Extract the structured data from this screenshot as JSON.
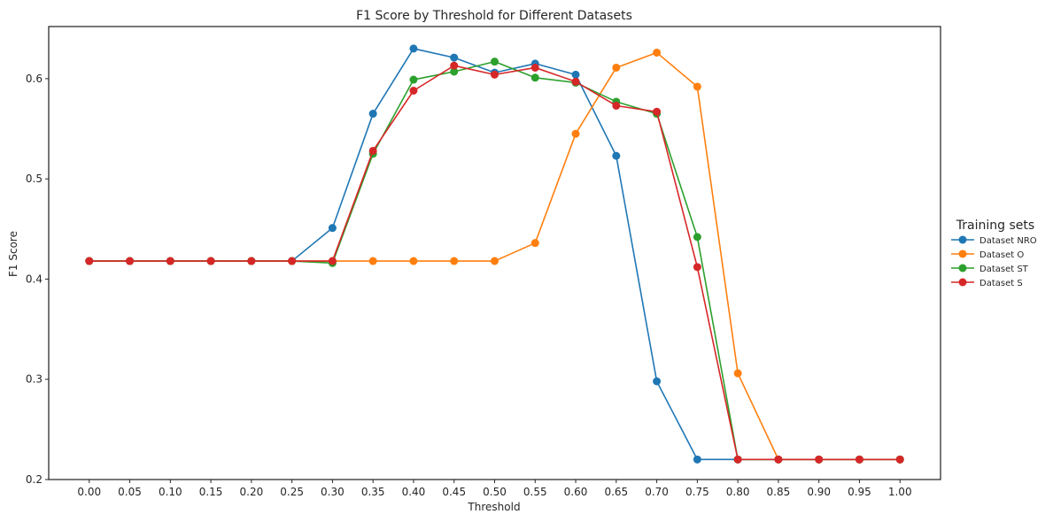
{
  "chart_data": {
    "type": "line",
    "title": "F1 Score by Threshold for Different Datasets",
    "xlabel": "Threshold",
    "ylabel": "F1 Score",
    "x": [
      0.0,
      0.05,
      0.1,
      0.15,
      0.2,
      0.25,
      0.3,
      0.35,
      0.4,
      0.45,
      0.5,
      0.55,
      0.6,
      0.65,
      0.7,
      0.75,
      0.8,
      0.85,
      0.9,
      0.95,
      1.0
    ],
    "x_tick_labels": [
      "0.00",
      "0.05",
      "0.10",
      "0.15",
      "0.20",
      "0.25",
      "0.30",
      "0.35",
      "0.40",
      "0.45",
      "0.50",
      "0.55",
      "0.60",
      "0.65",
      "0.70",
      "0.75",
      "0.80",
      "0.85",
      "0.90",
      "0.95",
      "1.00"
    ],
    "xlim": [
      -0.05,
      1.05
    ],
    "ylim": [
      0.2,
      0.652
    ],
    "y_ticks": [
      0.2,
      0.3,
      0.4,
      0.5,
      0.6
    ],
    "y_tick_labels": [
      "0.2",
      "0.3",
      "0.4",
      "0.5",
      "0.6"
    ],
    "grid": false,
    "legend": {
      "title": "Training sets",
      "placement": "outside-right"
    },
    "series": [
      {
        "name": "Dataset NRO",
        "color": "#1f77b4",
        "values": [
          0.418,
          0.418,
          0.418,
          0.418,
          0.418,
          0.418,
          0.451,
          0.565,
          0.63,
          0.621,
          0.606,
          0.615,
          0.604,
          0.523,
          0.298,
          0.22,
          0.22,
          0.22,
          0.22,
          0.22,
          0.22
        ]
      },
      {
        "name": "Dataset O",
        "color": "#ff7f0e",
        "values": [
          0.418,
          0.418,
          0.418,
          0.418,
          0.418,
          0.418,
          0.418,
          0.418,
          0.418,
          0.418,
          0.418,
          0.436,
          0.545,
          0.611,
          0.626,
          0.592,
          0.306,
          0.22,
          0.22,
          0.22,
          0.22
        ]
      },
      {
        "name": "Dataset ST",
        "color": "#2ca02c",
        "values": [
          0.418,
          0.418,
          0.418,
          0.418,
          0.418,
          0.418,
          0.416,
          0.525,
          0.599,
          0.607,
          0.617,
          0.601,
          0.596,
          0.577,
          0.565,
          0.442,
          0.22,
          0.22,
          0.22,
          0.22,
          0.22
        ]
      },
      {
        "name": "Dataset S",
        "color": "#d62728",
        "values": [
          0.418,
          0.418,
          0.418,
          0.418,
          0.418,
          0.418,
          0.418,
          0.528,
          0.588,
          0.613,
          0.604,
          0.611,
          0.597,
          0.573,
          0.567,
          0.412,
          0.22,
          0.22,
          0.22,
          0.22,
          0.22
        ]
      }
    ]
  }
}
